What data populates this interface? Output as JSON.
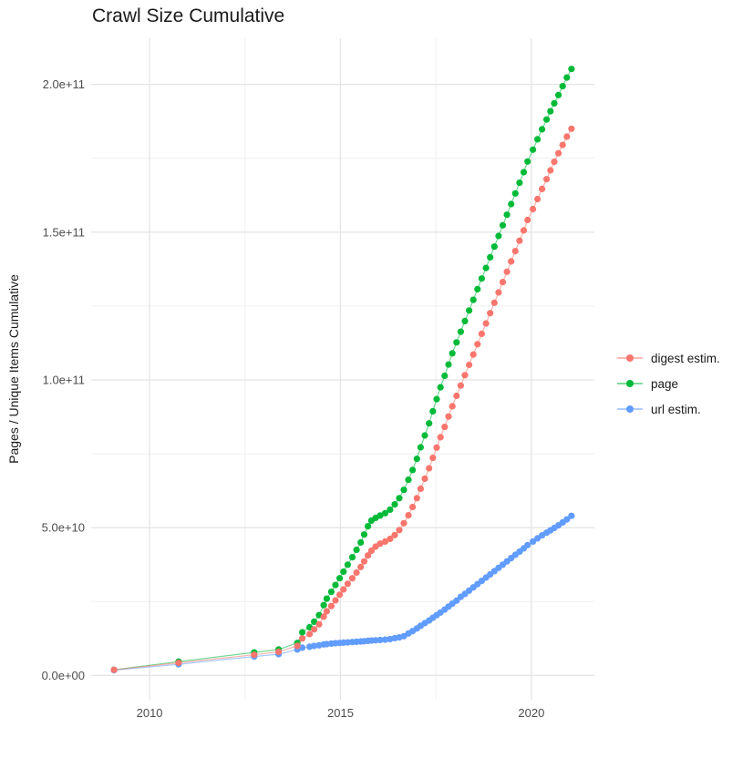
{
  "page": {
    "background": "#ffffff"
  },
  "chart_data": {
    "type": "line",
    "title": "Crawl Size Cumulative",
    "xlabel": "",
    "ylabel": "Pages / Unique Items Cumulative",
    "legend_position": "right",
    "grid": true,
    "panel_background": "#ffffff",
    "grid_major_color": "#e4e4e4",
    "grid_minor_color": "#efefef",
    "xlim": [
      2008.47,
      2021.65
    ],
    "x_major_ticks": [
      2010,
      2015,
      2020
    ],
    "x_tick_labels": [
      "2010",
      "2015",
      "2020"
    ],
    "x_minor_ticks": [
      2012.5,
      2017.5
    ],
    "ylim_billions": [
      -8.2,
      215.6
    ],
    "y_major_ticks_billions": [
      0,
      50,
      100,
      150,
      200
    ],
    "y_tick_labels": [
      "0.0e+00",
      "5.0e+10",
      "1.0e+11",
      "1.5e+11",
      "2.0e+11"
    ],
    "y_minor_ticks_billions": [
      25,
      75,
      125,
      175
    ],
    "x_years": [
      2009.07,
      2010.76,
      2012.74,
      2013.38,
      2013.87,
      2014.0,
      2014.19,
      2014.31,
      2014.44,
      2014.56,
      2014.64,
      2014.76,
      2014.87,
      2014.98,
      2015.08,
      2015.19,
      2015.31,
      2015.42,
      2015.53,
      2015.62,
      2015.72,
      2015.81,
      2015.92,
      2016.04,
      2016.17,
      2016.3,
      2016.42,
      2016.54,
      2016.66,
      2016.78,
      2016.89,
      2017.0,
      2017.1,
      2017.21,
      2017.32,
      2017.42,
      2017.52,
      2017.62,
      2017.73,
      2017.83,
      2017.93,
      2018.04,
      2018.15,
      2018.26,
      2018.37,
      2018.48,
      2018.59,
      2018.7,
      2018.81,
      2018.92,
      2019.03,
      2019.14,
      2019.25,
      2019.36,
      2019.47,
      2019.58,
      2019.69,
      2019.8,
      2019.9,
      2020.04,
      2020.16,
      2020.28,
      2020.4,
      2020.5,
      2020.6,
      2020.71,
      2020.82,
      2020.93,
      2021.05
    ],
    "series": [
      {
        "name": "digest estim.",
        "color": "#F8766D",
        "values_billions": [
          1.9,
          4.3,
          7.0,
          8.0,
          10.0,
          12.5,
          14.0,
          15.6,
          17.3,
          19.9,
          21.7,
          23.5,
          25.4,
          27.3,
          29.1,
          31.0,
          32.9,
          34.8,
          36.7,
          38.6,
          40.6,
          42.2,
          43.6,
          44.6,
          45.3,
          46.2,
          47.5,
          49.2,
          51.5,
          54.2,
          57.0,
          60.0,
          63.2,
          66.6,
          70.1,
          73.6,
          77.1,
          80.6,
          84.1,
          87.6,
          91.1,
          94.6,
          98.1,
          101.6,
          105.1,
          108.6,
          112.1,
          115.6,
          119.1,
          122.6,
          126.1,
          129.6,
          133.1,
          136.6,
          140.1,
          143.6,
          147.1,
          150.6,
          154.1,
          157.8,
          161.2,
          164.6,
          167.9,
          170.9,
          173.8,
          176.7,
          179.5,
          182.3,
          185.0
        ]
      },
      {
        "name": "page",
        "color": "#00BA38",
        "values_billions": [
          1.9,
          4.7,
          7.8,
          8.8,
          11.0,
          14.6,
          16.3,
          18.2,
          20.4,
          23.8,
          26.0,
          28.3,
          30.6,
          32.9,
          35.1,
          37.5,
          40.0,
          42.5,
          45.0,
          47.7,
          50.5,
          52.4,
          53.3,
          54.1,
          54.9,
          56.1,
          57.9,
          60.0,
          62.8,
          66.2,
          69.5,
          73.3,
          77.2,
          81.2,
          85.3,
          89.4,
          93.5,
          97.5,
          101.4,
          105.2,
          109.0,
          112.7,
          116.3,
          119.9,
          123.5,
          127.1,
          130.7,
          134.3,
          137.9,
          141.5,
          145.1,
          148.7,
          152.3,
          155.9,
          159.5,
          163.1,
          166.7,
          170.3,
          173.9,
          177.9,
          181.4,
          184.8,
          188.1,
          190.9,
          193.6,
          196.4,
          199.4,
          202.3,
          205.2
        ]
      },
      {
        "name": "url estim.",
        "color": "#619CFF",
        "values_billions": [
          1.8,
          3.8,
          6.4,
          7.2,
          8.8,
          9.4,
          9.7,
          10.0,
          10.2,
          10.5,
          10.6,
          10.8,
          10.9,
          11.0,
          11.1,
          11.2,
          11.3,
          11.4,
          11.5,
          11.6,
          11.7,
          11.8,
          11.9,
          12.0,
          12.1,
          12.3,
          12.6,
          12.9,
          13.3,
          14.2,
          15.0,
          15.9,
          16.8,
          17.7,
          18.6,
          19.5,
          20.4,
          21.3,
          22.3,
          23.3,
          24.3,
          25.3,
          26.6,
          27.6,
          28.7,
          29.8,
          30.9,
          32.0,
          33.1,
          34.2,
          35.3,
          36.4,
          37.5,
          38.6,
          39.7,
          40.8,
          41.9,
          43.0,
          44.1,
          45.3,
          46.4,
          47.4,
          48.3,
          49.1,
          49.9,
          50.8,
          51.8,
          52.8,
          54.0
        ]
      }
    ]
  }
}
